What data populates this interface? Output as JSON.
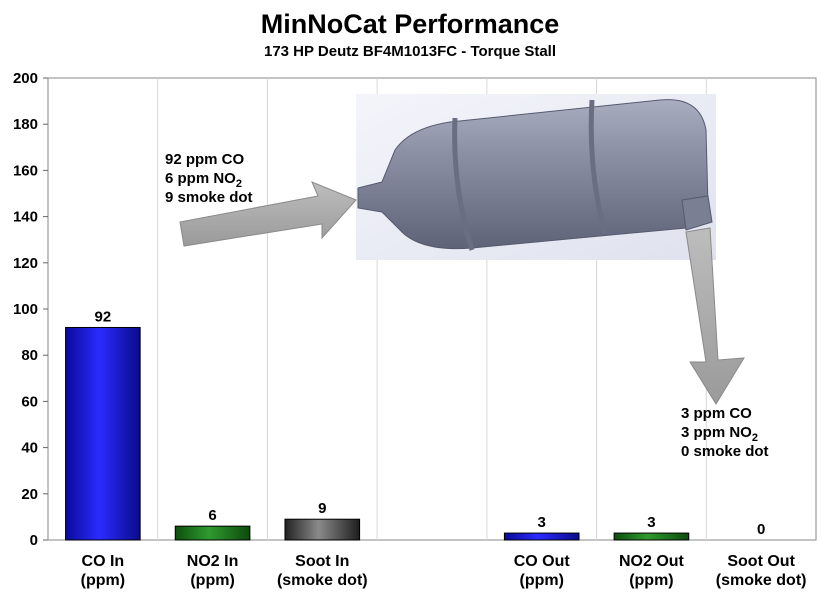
{
  "chart_data": {
    "type": "bar",
    "title": "MinNoCat Performance",
    "subtitle": "173 HP Deutz BF4M1013FC - Torque Stall",
    "ylim": [
      0,
      200
    ],
    "yticks": [
      0,
      20,
      40,
      60,
      80,
      100,
      120,
      140,
      160,
      180,
      200
    ],
    "grid": false,
    "categories": [
      {
        "line1": "CO In",
        "line2": "(ppm)"
      },
      {
        "line1": "NO2 In",
        "line2": "(ppm)"
      },
      {
        "line1": "Soot In",
        "line2": "(smoke dot)"
      },
      {
        "line1": "",
        "line2": ""
      },
      {
        "line1": "CO Out",
        "line2": "(ppm)"
      },
      {
        "line1": "NO2 Out",
        "line2": "(ppm)"
      },
      {
        "line1": "Soot Out",
        "line2": "(smoke dot)"
      }
    ],
    "values": [
      92,
      6,
      9,
      null,
      3,
      3,
      0
    ],
    "bar_colors": [
      "#1a1ae6",
      "#1f7a1f",
      "#555555",
      null,
      "#1a1ae6",
      "#1f7a1f",
      "#555555"
    ]
  },
  "annotations": {
    "inlet": {
      "line1": "92 ppm CO",
      "line2_main": "6 ppm NO",
      "line2_sub": "2",
      "line3": "9 smoke dot"
    },
    "outlet": {
      "line1": "3 ppm CO",
      "line2_main": "3 ppm NO",
      "line2_sub": "2",
      "line3": "0 smoke dot"
    }
  },
  "image": {
    "name": "catalyst-canister-illustration"
  }
}
